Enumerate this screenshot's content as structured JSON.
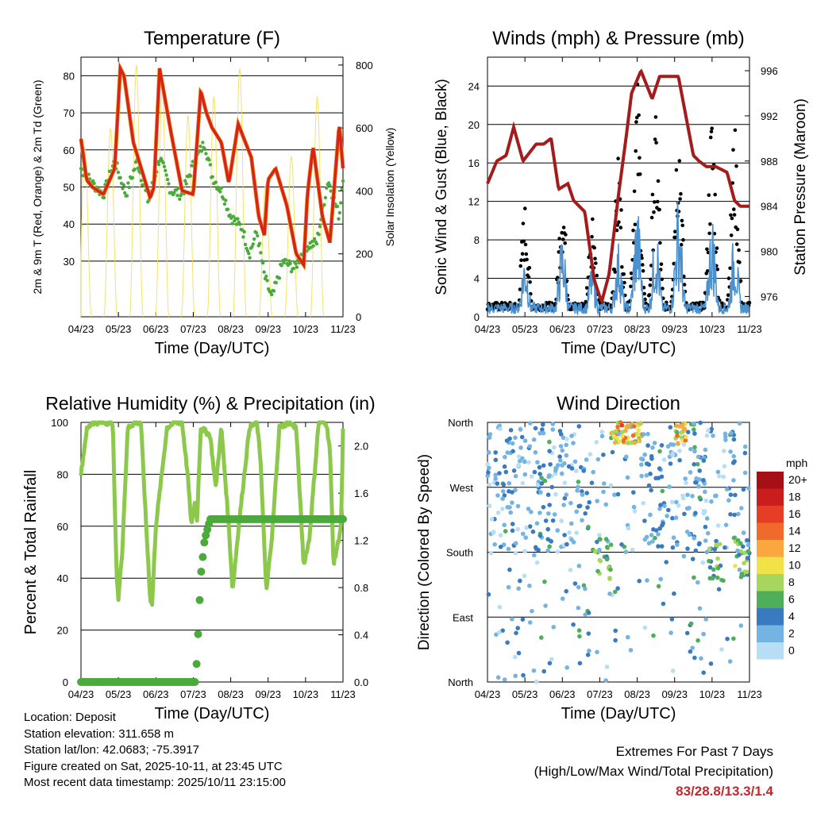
{
  "chart_data": [
    {
      "type": "line",
      "title": "Temperature (F)",
      "xlabel": "Time (Day/UTC)",
      "ylabel": "2m & 9m T (Red, Orange) & 2m Td (Green)",
      "y2label": "Solar Insolation (Yellow)",
      "xticks": [
        "04/23",
        "05/23",
        "06/23",
        "07/23",
        "08/23",
        "09/23",
        "10/23",
        "11/23"
      ],
      "ylim": [
        15,
        85
      ],
      "yticks": [
        30,
        40,
        50,
        60,
        70,
        80
      ],
      "y2lim": [
        0,
        825
      ],
      "y2ticks": [
        0,
        200,
        400,
        600,
        800
      ],
      "series": [
        {
          "name": "2m T",
          "color": "#d62418",
          "x": [
            0,
            0.15,
            0.3,
            0.6,
            0.9,
            1.05,
            1.15,
            1.4,
            1.7,
            1.85,
            1.95,
            2.1,
            2.4,
            2.7,
            3,
            3.2,
            3.35,
            3.5,
            3.75,
            3.95,
            4.2,
            4.55,
            4.75,
            4.9,
            5,
            5.2,
            5.5,
            5.75,
            5.95,
            6.05,
            6.2,
            6.45,
            6.65,
            6.9,
            7
          ],
          "y": [
            63,
            52,
            50,
            48,
            55,
            82,
            80,
            62,
            52,
            47,
            50,
            82,
            65,
            49,
            48,
            76,
            70,
            66,
            62,
            51,
            67,
            58,
            42,
            37,
            52,
            55,
            45,
            32,
            29,
            48,
            61,
            42,
            35,
            67,
            55
          ]
        },
        {
          "name": "2m Td",
          "color": "#4aaa3a",
          "x": [
            0,
            0.3,
            0.6,
            0.9,
            1.2,
            1.5,
            1.8,
            2.1,
            2.4,
            2.7,
            3,
            3.3,
            3.5,
            3.8,
            4,
            4.3,
            4.5,
            4.7,
            4.9,
            5.1,
            5.4,
            5.7,
            6,
            6.3,
            6.6,
            6.9,
            7
          ],
          "y": [
            55,
            51,
            48,
            57,
            48,
            57,
            46,
            58,
            49,
            48,
            56,
            62,
            53,
            48,
            42,
            39,
            32,
            38,
            26,
            20,
            30,
            28,
            34,
            35,
            52,
            42,
            53
          ]
        },
        {
          "name": "Solar Insolation",
          "color": "#f2df5a",
          "axis": "y2",
          "peaks": [
            540,
            600,
            800,
            720,
            640,
            700,
            790,
            420,
            510,
            700
          ]
        }
      ]
    },
    {
      "type": "scatter",
      "title": "Winds (mph) & Pressure (mb)",
      "xlabel": "Time (Day/UTC)",
      "ylabel": "Sonic Wind & Gust (Blue, Black)",
      "y2label": "Station Pressure (Maroon)",
      "xticks": [
        "04/23",
        "05/23",
        "06/23",
        "07/23",
        "08/23",
        "09/23",
        "10/23",
        "11/23"
      ],
      "ylim": [
        0,
        27
      ],
      "yticks": [
        0,
        4,
        8,
        12,
        16,
        20,
        24
      ],
      "y2lim": [
        974.2,
        997.2
      ],
      "y2ticks": [
        976,
        980,
        984,
        988,
        992,
        996
      ],
      "series": [
        {
          "name": "Sonic Wind",
          "color": "#4b91cf",
          "peaks": [
            [
              1.0,
              7
            ],
            [
              2.0,
              9
            ],
            [
              2.8,
              6
            ],
            [
              3.5,
              8
            ],
            [
              4.0,
              12
            ],
            [
              4.5,
              10
            ],
            [
              5.1,
              13
            ],
            [
              6.0,
              11
            ],
            [
              6.6,
              9
            ]
          ]
        },
        {
          "name": "Gust",
          "color": "#000000",
          "peaks": [
            [
              1.0,
              12
            ],
            [
              2.0,
              14
            ],
            [
              2.8,
              12
            ],
            [
              3.5,
              17
            ],
            [
              4.0,
              25
            ],
            [
              4.5,
              21
            ],
            [
              5.1,
              22
            ],
            [
              6.0,
              22
            ],
            [
              6.6,
              20
            ]
          ]
        },
        {
          "name": "Station Pressure",
          "color": "#a31c1c",
          "axis": "y2",
          "x": [
            0,
            0.25,
            0.5,
            0.7,
            0.95,
            1.3,
            1.5,
            1.7,
            1.9,
            2.15,
            2.3,
            2.6,
            2.85,
            3.05,
            3.25,
            3.5,
            3.7,
            3.85,
            4.1,
            4.4,
            4.6,
            4.8,
            4.95,
            5.1,
            5.3,
            5.5,
            5.65,
            5.85,
            6.1,
            6.4,
            6.6,
            6.75,
            6.85,
            7
          ],
          "y": [
            986,
            988,
            988.5,
            991,
            988,
            989.5,
            989.5,
            990,
            985.5,
            986,
            984.5,
            983.5,
            977.5,
            975.5,
            978,
            985,
            990,
            994,
            996,
            993.5,
            995.5,
            995.5,
            995.5,
            995.5,
            992,
            988.5,
            988,
            987.5,
            987.5,
            987,
            984.5,
            984,
            984,
            984
          ]
        }
      ]
    },
    {
      "type": "line",
      "title": "Relative Humidity (%) & Precipitation (in)",
      "xlabel": "Time (Day/UTC)",
      "ylabel": "Percent & Total Rainfall",
      "xticks": [
        "04/23",
        "05/23",
        "06/23",
        "07/23",
        "08/23",
        "09/23",
        "10/23",
        "11/23"
      ],
      "ylim": [
        0,
        100
      ],
      "yticks": [
        0,
        20,
        40,
        60,
        80,
        100
      ],
      "y2lim": [
        0,
        2.2
      ],
      "y2ticks": [
        "0.0",
        "0.4",
        "0.8",
        "1.2",
        "1.6",
        "2.0"
      ],
      "series": [
        {
          "name": "Relative Humidity",
          "color": "#8cc84b",
          "x": [
            0,
            0.15,
            0.3,
            0.55,
            0.85,
            0.9,
            0.95,
            1.0,
            1.1,
            1.25,
            1.45,
            1.6,
            1.75,
            1.85,
            1.9,
            2.0,
            2.3,
            2.5,
            2.7,
            2.85,
            2.95,
            3.05,
            3.1,
            3.2,
            3.45,
            3.6,
            3.75,
            3.95,
            4.05,
            4.2,
            4.5,
            4.7,
            4.8,
            4.95,
            5.1,
            5.3,
            5.55,
            5.75,
            5.95,
            6.1,
            6.35,
            6.55,
            6.65,
            6.75,
            6.95,
            7
          ],
          "y": [
            80,
            97,
            100,
            100,
            100,
            70,
            42,
            32,
            50,
            98,
            100,
            100,
            58,
            32,
            30,
            60,
            98,
            100,
            100,
            80,
            60,
            70,
            62,
            98,
            95,
            75,
            98,
            60,
            35,
            58,
            98,
            100,
            85,
            35,
            55,
            98,
            100,
            98,
            45,
            55,
            100,
            100,
            90,
            45,
            60,
            97
          ]
        },
        {
          "name": "Total Precipitation",
          "color": "#4aaa3a",
          "axis": "y2",
          "x": [
            0,
            3.05,
            3.1,
            3.15,
            3.2,
            3.3,
            3.45,
            3.55,
            7
          ],
          "y": [
            0,
            0,
            0.2,
            0.55,
            0.9,
            1.2,
            1.38,
            1.38,
            1.38
          ]
        }
      ]
    },
    {
      "type": "scatter",
      "title": "Wind Direction",
      "xlabel": "Time (Day/UTC)",
      "ylabel": "Direction (Colored By Speed)",
      "xticks": [
        "04/23",
        "05/23",
        "06/23",
        "07/23",
        "08/23",
        "09/23",
        "10/23",
        "11/23"
      ],
      "yticks": [
        "North",
        "East",
        "South",
        "West",
        "North"
      ],
      "legend": {
        "unit": "mph",
        "labels": [
          "20+",
          "18",
          "16",
          "14",
          "12",
          "10",
          "8",
          "6",
          "4",
          "2",
          "0"
        ],
        "colors": [
          "#a50f15",
          "#c81e1e",
          "#e53d26",
          "#f06a2c",
          "#f9a73e",
          "#f2e24a",
          "#a7d65c",
          "#4fae5a",
          "#3a7bbf",
          "#74b3e2",
          "#b7def4"
        ]
      }
    }
  ],
  "footer": {
    "location": "Location: Deposit",
    "elevation": "Station elevation: 311.658 m",
    "latlon": "Station lat/lon: 42.0683; -75.3917",
    "created": "Figure created on Sat, 2025-10-11, at 23:45 UTC",
    "recent": "Most recent data timestamp: 2025/10/11 23:15:00"
  },
  "extremes": {
    "line1": "Extremes For Past 7 Days",
    "line2": "(High/Low/Max Wind/Total Precipitation)",
    "value": "83/28.8/13.3/1.4"
  }
}
